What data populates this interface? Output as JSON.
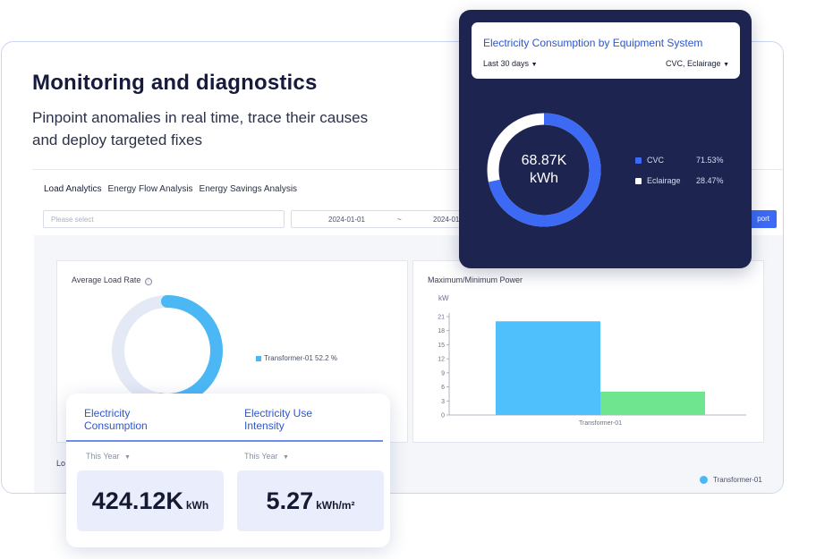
{
  "hero": {
    "title": "Monitoring and diagnostics",
    "subtitle": "Pinpoint anomalies in real time, trace their causes and deploy targeted fixes"
  },
  "tabs": [
    "Load Analytics",
    "Energy Flow Analysis",
    "Energy Savings Analysis"
  ],
  "filters": {
    "select_placeholder": "Please select",
    "date_start": "2024-01-01",
    "date_separator": "~",
    "date_end": "2024-01",
    "export_label": "port"
  },
  "avg_load": {
    "title": "Average Load Rate",
    "info_icon": "ⓘ",
    "legend": "Transformer-01 52.2 %",
    "value_percent": 52.2,
    "colors": {
      "fill": "#4bb8f5",
      "track": "#e3e9f5"
    }
  },
  "max_min_power": {
    "title": "Maximum/Minimum Power",
    "y_unit": "kW",
    "x_label": "Transformer-01"
  },
  "chart_data": {
    "type": "bar",
    "categories": [
      "Transformer-01"
    ],
    "series": [
      {
        "values": [
          20
        ],
        "color": "#4fc0fb"
      },
      {
        "values": [
          5
        ],
        "color": "#6ee58e"
      }
    ],
    "ylabel": "kW",
    "yticks": [
      0,
      3,
      6,
      9,
      12,
      15,
      18,
      21
    ],
    "ylim": [
      0,
      21
    ]
  },
  "lower_panel_label": "Lo",
  "bottom_legend": "Transformer-01",
  "equipment_card": {
    "title": "Electricity Consumption by Equipment System",
    "period_dropdown": "Last 30 days",
    "system_dropdown": "CVC, Eclairage",
    "total_value": "68.87K",
    "total_unit": "kWh",
    "items": [
      {
        "label": "CVC",
        "percent": "71.53%",
        "share": 71.53,
        "color": "#3d6af5"
      },
      {
        "label": "Eclairage",
        "percent": "28.47%",
        "share": 28.47,
        "color": "#ffffff"
      }
    ]
  },
  "kpi_card": {
    "consumption": {
      "title_line1": "Electricity",
      "title_line2": "Consumption",
      "period": "This Year",
      "value": "424.12K",
      "unit": "kWh"
    },
    "intensity": {
      "title_line1": "Electricity Use",
      "title_line2": "Intensity",
      "period": "This Year",
      "value": "5.27",
      "unit": "kWh/m²"
    }
  },
  "glyphs": {
    "caret": "▼"
  }
}
